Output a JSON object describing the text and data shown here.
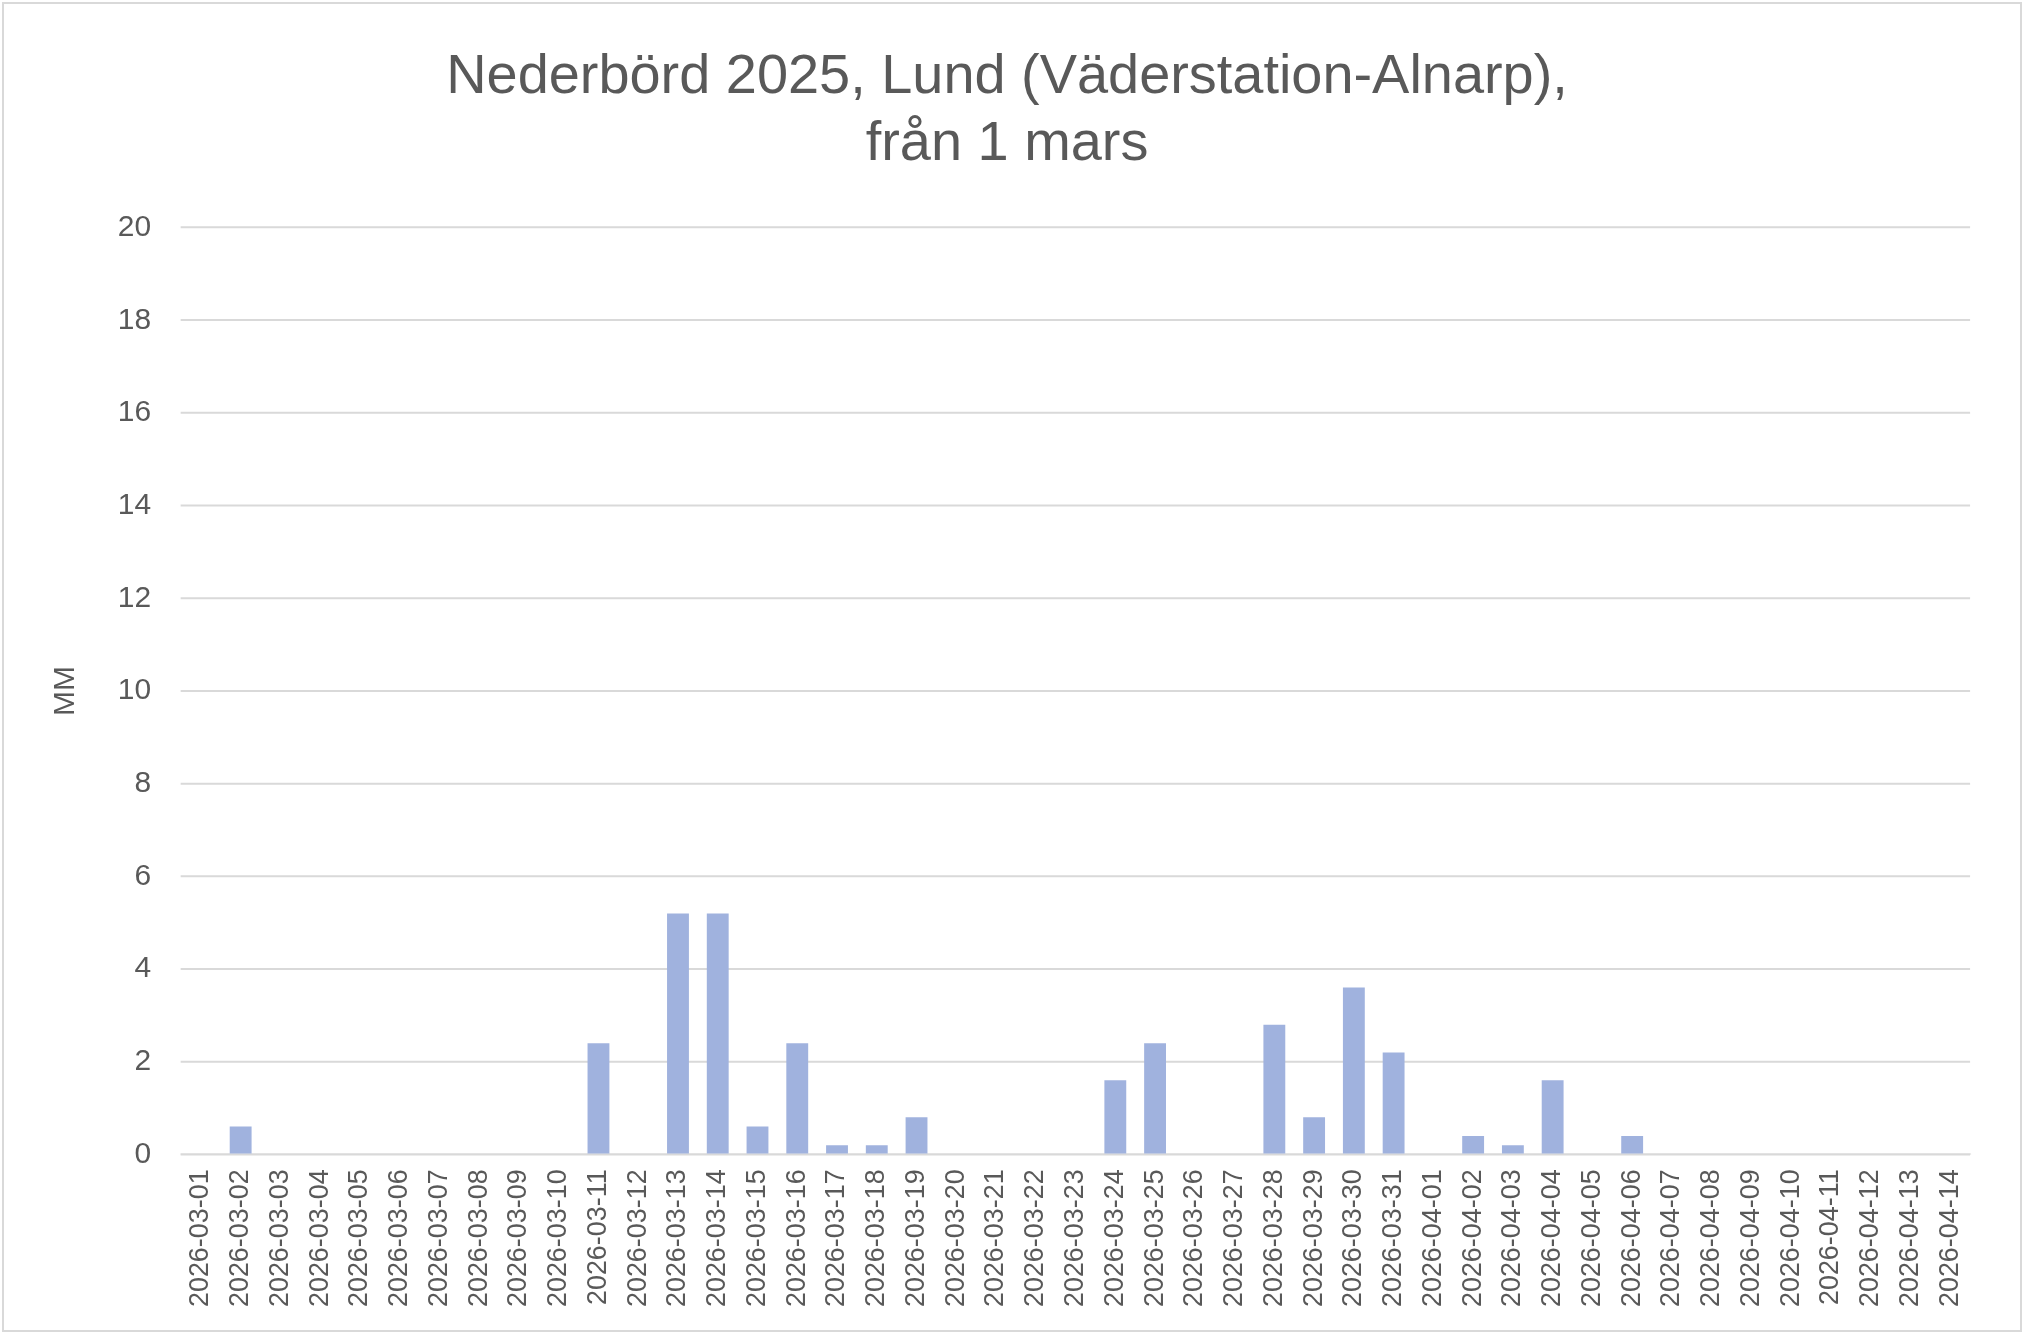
{
  "chart_data": {
    "type": "bar",
    "title": [
      "Nederbörd 2025, Lund (Väderstation-Alnarp),",
      "från 1 mars"
    ],
    "ylabel": "MM",
    "categories": [
      "2026-03-01",
      "2026-03-02",
      "2026-03-03",
      "2026-03-04",
      "2026-03-05",
      "2026-03-06",
      "2026-03-07",
      "2026-03-08",
      "2026-03-09",
      "2026-03-10",
      "2026-03-11",
      "2026-03-12",
      "2026-03-13",
      "2026-03-14",
      "2026-03-15",
      "2026-03-16",
      "2026-03-17",
      "2026-03-18",
      "2026-03-19",
      "2026-03-20",
      "2026-03-21",
      "2026-03-22",
      "2026-03-23",
      "2026-03-24",
      "2026-03-25",
      "2026-03-26",
      "2026-03-27",
      "2026-03-28",
      "2026-03-29",
      "2026-03-30",
      "2026-03-31",
      "2026-04-01",
      "2026-04-02",
      "2026-04-03",
      "2026-04-04",
      "2026-04-05",
      "2026-04-06",
      "2026-04-07",
      "2026-04-08",
      "2026-04-09",
      "2026-04-10",
      "2026-04-11",
      "2026-04-12",
      "2026-04-13",
      "2026-04-14"
    ],
    "values": [
      0,
      0.6,
      0,
      0,
      0,
      0,
      0,
      0,
      0,
      0,
      2.4,
      0,
      5.2,
      5.2,
      0.6,
      2.4,
      0.2,
      0.2,
      0.8,
      0,
      0,
      0,
      0,
      1.6,
      2.4,
      0,
      0,
      2.8,
      0.8,
      3.6,
      2.2,
      0,
      0.4,
      0.2,
      1.6,
      0,
      0.4,
      0,
      0,
      0,
      0,
      0,
      0,
      0,
      0
    ],
    "color": "#a0b2de",
    "ylim": [
      0,
      20
    ],
    "yticks": [
      0,
      2,
      4,
      6,
      8,
      10,
      12,
      14,
      16,
      18,
      20
    ],
    "grid": "y"
  }
}
